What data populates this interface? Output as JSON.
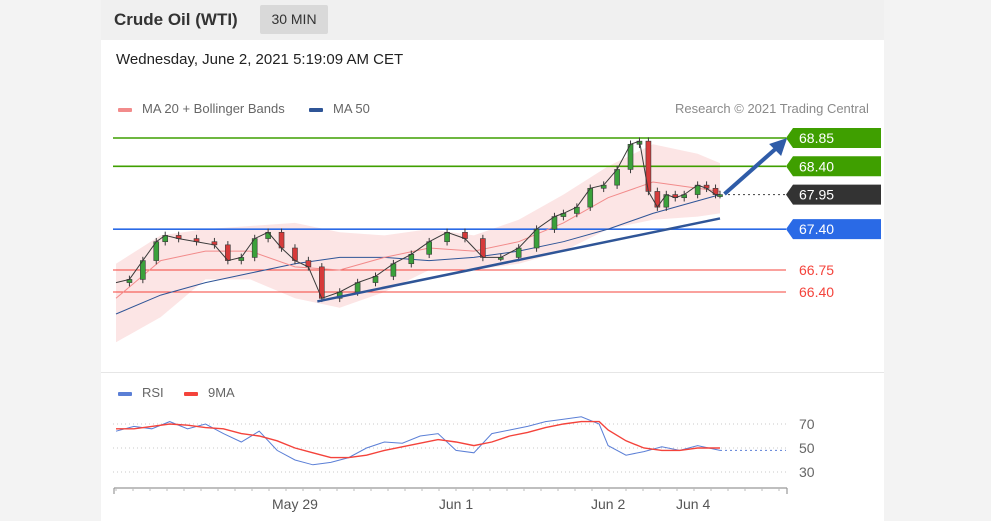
{
  "header": {
    "title": "Crude Oil (WTI)",
    "timeframe": "30 MIN"
  },
  "datetime": "Wednesday, June 2, 2021 5:19:09 AM CET",
  "legend": {
    "ma20": {
      "label": "MA 20 + Bollinger Bands",
      "color": "#f28b8b"
    },
    "ma50": {
      "label": "MA 50",
      "color": "#2f5597"
    }
  },
  "credit": "Research © 2021 Trading Central",
  "chart_data": [
    {
      "type": "line",
      "title": "",
      "y_range": [
        65.55,
        69.0
      ],
      "x_range": [
        0,
        140
      ],
      "levels": [
        {
          "label": "68.85",
          "value": 68.85,
          "color": "#3f9f00",
          "style": "resistance"
        },
        {
          "label": "68.40",
          "value": 68.4,
          "color": "#3f9f00",
          "style": "resistance"
        },
        {
          "label": "67.95",
          "value": 67.95,
          "color": "#333333",
          "style": "last"
        },
        {
          "label": "67.40",
          "value": 67.4,
          "color": "#2a6ae6",
          "style": "pivot"
        },
        {
          "label": "66.75",
          "value": 66.75,
          "color": "#f4433b",
          "style": "support"
        },
        {
          "label": "66.40",
          "value": 66.4,
          "color": "#f4433b",
          "style": "support"
        }
      ],
      "series": [
        {
          "name": "MA 50",
          "color": "#2f5597",
          "x": [
            0,
            10,
            20,
            30,
            40,
            50,
            60,
            70,
            80,
            90,
            100,
            110,
            120,
            130,
            135
          ],
          "values": [
            66.05,
            66.35,
            66.55,
            66.7,
            66.85,
            66.95,
            66.95,
            66.9,
            66.95,
            67.05,
            67.2,
            67.4,
            67.65,
            67.85,
            67.95
          ]
        },
        {
          "name": "MA 20",
          "color": "#f28b8b",
          "x": [
            0,
            10,
            20,
            30,
            40,
            50,
            60,
            70,
            80,
            90,
            100,
            110,
            120,
            130,
            135
          ],
          "values": [
            66.3,
            66.9,
            67.05,
            67.05,
            66.8,
            66.75,
            66.95,
            67.1,
            67.05,
            67.2,
            67.5,
            67.9,
            68.15,
            68.05,
            68.0
          ]
        }
      ],
      "bands": {
        "x": [
          0,
          10,
          20,
          30,
          40,
          50,
          60,
          70,
          80,
          90,
          100,
          110,
          120,
          130,
          135
        ],
        "upper": [
          66.85,
          67.3,
          67.4,
          67.45,
          67.5,
          67.35,
          67.3,
          67.4,
          67.3,
          67.55,
          67.95,
          68.4,
          68.75,
          68.6,
          68.45
        ],
        "lower": [
          65.6,
          66.0,
          66.6,
          66.6,
          66.3,
          66.15,
          66.4,
          66.75,
          66.75,
          66.85,
          67.05,
          67.4,
          67.55,
          67.6,
          67.65
        ]
      },
      "price": {
        "x": [
          0,
          3,
          6,
          9,
          11,
          14,
          18,
          22,
          25,
          28,
          31,
          34,
          37,
          40,
          43,
          46,
          50,
          54,
          58,
          62,
          66,
          70,
          74,
          78,
          82,
          86,
          90,
          94,
          98,
          100,
          103,
          106,
          109,
          112,
          115,
          117,
          119,
          121,
          123,
          125,
          127,
          130,
          132,
          134,
          135
        ],
        "values": [
          66.55,
          66.6,
          66.9,
          67.2,
          67.3,
          67.25,
          67.2,
          67.15,
          66.9,
          66.95,
          67.25,
          67.35,
          67.1,
          66.9,
          66.8,
          66.3,
          66.4,
          66.55,
          66.65,
          66.85,
          67.0,
          67.2,
          67.35,
          67.25,
          66.95,
          66.95,
          67.1,
          67.4,
          67.6,
          67.65,
          67.75,
          68.05,
          68.1,
          68.35,
          68.75,
          68.8,
          68.0,
          67.75,
          67.95,
          67.9,
          67.95,
          68.1,
          68.05,
          67.95,
          67.95
        ]
      },
      "trendlines": [
        {
          "x": [
            45,
            135
          ],
          "values": [
            66.25,
            67.57
          ]
        }
      ],
      "projection": {
        "x": [
          136,
          150
        ],
        "values": [
          67.96,
          68.85
        ]
      },
      "x_ticks": []
    },
    {
      "type": "line",
      "title": "",
      "y_range": [
        22,
        82
      ],
      "x_range": [
        0,
        140
      ],
      "legend": [
        {
          "label": "RSI",
          "color": "#5b7fd6"
        },
        {
          "label": "9MA",
          "color": "#f4433b"
        }
      ],
      "y_ticks": [
        "70",
        "50",
        "30"
      ],
      "y_tick_values": [
        70,
        50,
        30
      ],
      "x_ticks": [
        "May 29",
        "Jun 1",
        "Jun 2",
        "Jun 4"
      ],
      "x_tick_values": [
        40,
        76,
        110,
        129
      ],
      "series": [
        {
          "name": "RSI",
          "color": "#5b7fd6",
          "x": [
            0,
            4,
            8,
            12,
            16,
            20,
            24,
            28,
            32,
            36,
            40,
            44,
            48,
            52,
            56,
            60,
            64,
            68,
            72,
            76,
            80,
            84,
            88,
            92,
            96,
            100,
            104,
            108,
            110,
            114,
            118,
            122,
            126,
            130,
            135
          ],
          "values": [
            64,
            68,
            66,
            72,
            66,
            70,
            62,
            55,
            64,
            48,
            40,
            36,
            38,
            42,
            50,
            55,
            54,
            60,
            62,
            48,
            46,
            62,
            65,
            68,
            72,
            74,
            76,
            70,
            52,
            44,
            47,
            51,
            48,
            52,
            48
          ]
        },
        {
          "name": "9MA",
          "color": "#f4433b",
          "x": [
            0,
            4,
            8,
            12,
            16,
            20,
            24,
            28,
            32,
            36,
            40,
            44,
            48,
            52,
            56,
            60,
            64,
            68,
            72,
            76,
            80,
            84,
            88,
            92,
            96,
            100,
            104,
            108,
            110,
            114,
            118,
            122,
            126,
            130,
            135
          ],
          "values": [
            66,
            66,
            68,
            70,
            69,
            67,
            66,
            62,
            60,
            56,
            50,
            46,
            42,
            42,
            44,
            48,
            51,
            54,
            57,
            55,
            52,
            55,
            60,
            63,
            67,
            70,
            72,
            72,
            65,
            56,
            50,
            48,
            48,
            50,
            50
          ]
        }
      ]
    }
  ]
}
